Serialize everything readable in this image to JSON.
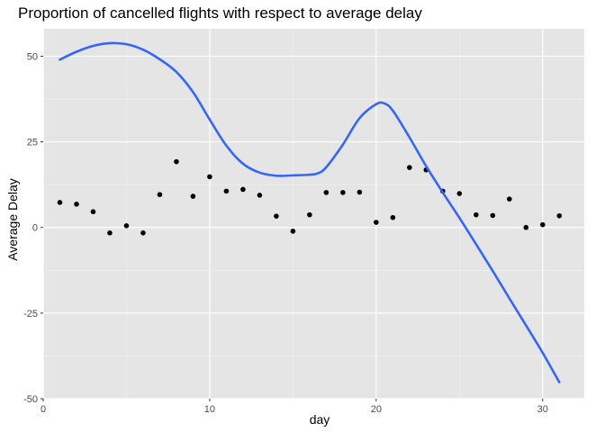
{
  "chart_data": {
    "type": "scatter",
    "title": "Proportion of cancelled flights with respect to average delay",
    "xlabel": "day",
    "ylabel": "Average Delay",
    "xlim": [
      0,
      32.5
    ],
    "ylim": [
      -50,
      58
    ],
    "x_ticks": [
      0,
      10,
      20,
      30
    ],
    "y_ticks": [
      -50,
      -25,
      0,
      25,
      50
    ],
    "x_tick_labels": [
      "0",
      "10",
      "20",
      "30"
    ],
    "y_tick_labels": [
      "-50",
      "-25",
      "0",
      "25",
      "50"
    ],
    "grid": true,
    "background": "#e5e5e5",
    "point_color": "#000000",
    "line_color": "#3366ff",
    "points": [
      {
        "x": 1,
        "y": 7.3
      },
      {
        "x": 2,
        "y": 6.8
      },
      {
        "x": 3,
        "y": 4.6
      },
      {
        "x": 4,
        "y": -1.6
      },
      {
        "x": 5,
        "y": 0.5
      },
      {
        "x": 6,
        "y": -1.6
      },
      {
        "x": 7,
        "y": 9.6
      },
      {
        "x": 8,
        "y": 19.2
      },
      {
        "x": 9,
        "y": 9.1
      },
      {
        "x": 10,
        "y": 14.8
      },
      {
        "x": 11,
        "y": 10.6
      },
      {
        "x": 12,
        "y": 11.1
      },
      {
        "x": 13,
        "y": 9.4
      },
      {
        "x": 14,
        "y": 3.3
      },
      {
        "x": 15,
        "y": -1.1
      },
      {
        "x": 16,
        "y": 3.7
      },
      {
        "x": 17,
        "y": 10.2
      },
      {
        "x": 18,
        "y": 10.2
      },
      {
        "x": 19,
        "y": 10.3
      },
      {
        "x": 20,
        "y": 1.5
      },
      {
        "x": 21,
        "y": 2.9
      },
      {
        "x": 22,
        "y": 17.5
      },
      {
        "x": 23,
        "y": 16.8
      },
      {
        "x": 24,
        "y": 10.6
      },
      {
        "x": 25,
        "y": 9.9
      },
      {
        "x": 26,
        "y": 3.7
      },
      {
        "x": 27,
        "y": 3.5
      },
      {
        "x": 28,
        "y": 8.3
      },
      {
        "x": 29,
        "y": 0.0
      },
      {
        "x": 30,
        "y": 0.8
      },
      {
        "x": 31,
        "y": 3.4
      }
    ],
    "smooth_line": [
      {
        "x": 1,
        "y": 49
      },
      {
        "x": 2,
        "y": 51.3
      },
      {
        "x": 3,
        "y": 53
      },
      {
        "x": 4,
        "y": 53.8
      },
      {
        "x": 5,
        "y": 53.5
      },
      {
        "x": 6,
        "y": 51.9
      },
      {
        "x": 7,
        "y": 49.1
      },
      {
        "x": 8,
        "y": 45.4
      },
      {
        "x": 9,
        "y": 39.5
      },
      {
        "x": 10,
        "y": 31.5
      },
      {
        "x": 11,
        "y": 23.9
      },
      {
        "x": 12,
        "y": 18.6
      },
      {
        "x": 13,
        "y": 16
      },
      {
        "x": 14,
        "y": 15.1
      },
      {
        "x": 15,
        "y": 15.2
      },
      {
        "x": 16,
        "y": 15.4
      },
      {
        "x": 16.5,
        "y": 15.8
      },
      {
        "x": 17,
        "y": 17.6
      },
      {
        "x": 18,
        "y": 24.2
      },
      {
        "x": 19,
        "y": 31.9
      },
      {
        "x": 20,
        "y": 36
      },
      {
        "x": 20.5,
        "y": 36.2
      },
      {
        "x": 21,
        "y": 34.1
      },
      {
        "x": 22,
        "y": 26.3
      },
      {
        "x": 23,
        "y": 17.9
      },
      {
        "x": 24,
        "y": 10.2
      },
      {
        "x": 25,
        "y": 2.8
      },
      {
        "x": 26,
        "y": -4.9
      },
      {
        "x": 27,
        "y": -12.7
      },
      {
        "x": 28,
        "y": -20.7
      },
      {
        "x": 29,
        "y": -28.6
      },
      {
        "x": 30,
        "y": -36.6
      },
      {
        "x": 31,
        "y": -45.2
      }
    ]
  }
}
